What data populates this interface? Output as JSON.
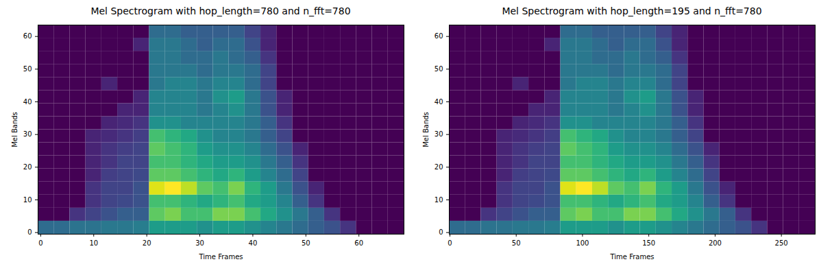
{
  "chart_data": [
    {
      "type": "heatmap",
      "title": "Mel Spectrogram with hop_length=780 and n_fft=780",
      "x_label": "Time Frames",
      "y_label": "Mel Bands",
      "color": "viridis",
      "xlim": [
        -0.5,
        68.5
      ],
      "ylim": [
        -0.5,
        63.5
      ],
      "xticks": [
        0,
        10,
        20,
        30,
        40,
        50,
        60
      ],
      "yticks": [
        0,
        10,
        20,
        30,
        40,
        50,
        60
      ],
      "x_edges": [
        -0.5,
        2.5,
        5.5,
        8.5,
        11.5,
        14.5,
        17.5,
        20.5,
        23.5,
        26.5,
        29.5,
        32.5,
        35.5,
        38.5,
        41.5,
        44.5,
        47.5,
        50.5,
        53.5,
        56.5,
        59.5,
        62.5,
        65.5,
        68.5
      ],
      "y_edges": [
        -0.5,
        3.5,
        7.5,
        11.5,
        15.5,
        19.5,
        23.5,
        27.5,
        31.5,
        35.5,
        39.5,
        43.5,
        47.5,
        51.5,
        55.5,
        59.5,
        63.5
      ],
      "cells": [
        [
          0.35,
          0.35,
          0.38,
          0.38,
          0.4,
          0.4,
          0.42,
          0.55,
          0.55,
          0.55,
          0.5,
          0.55,
          0.55,
          0.5,
          0.45,
          0.4,
          0.35,
          0.3,
          0.25,
          0.15,
          0,
          0,
          0
        ],
        [
          0,
          0,
          0.15,
          0.2,
          0.25,
          0.3,
          0.3,
          0.75,
          0.8,
          0.7,
          0.7,
          0.8,
          0.8,
          0.7,
          0.6,
          0.5,
          0.4,
          0.3,
          0.15,
          0,
          0,
          0,
          0
        ],
        [
          0,
          0,
          0,
          0.15,
          0.2,
          0.22,
          0.25,
          0.7,
          0.7,
          0.65,
          0.6,
          0.65,
          0.7,
          0.6,
          0.55,
          0.45,
          0.3,
          0.15,
          0,
          0,
          0,
          0,
          0
        ],
        [
          0,
          0,
          0,
          0.15,
          0.2,
          0.2,
          0.25,
          0.95,
          1,
          0.9,
          0.75,
          0.7,
          0.8,
          0.65,
          0.55,
          0.4,
          0.25,
          0.1,
          0,
          0,
          0,
          0,
          0
        ],
        [
          0,
          0,
          0,
          0.1,
          0.18,
          0.2,
          0.22,
          0.75,
          0.75,
          0.7,
          0.65,
          0.6,
          0.65,
          0.55,
          0.45,
          0.35,
          0.2,
          0,
          0,
          0,
          0,
          0,
          0
        ],
        [
          0,
          0,
          0,
          0.1,
          0.15,
          0.2,
          0.2,
          0.7,
          0.7,
          0.65,
          0.6,
          0.55,
          0.55,
          0.5,
          0.4,
          0.3,
          0.15,
          0,
          0,
          0,
          0,
          0,
          0
        ],
        [
          0,
          0,
          0,
          0.1,
          0.15,
          0.18,
          0.2,
          0.75,
          0.7,
          0.65,
          0.55,
          0.5,
          0.5,
          0.45,
          0.35,
          0.25,
          0.1,
          0,
          0,
          0,
          0,
          0,
          0
        ],
        [
          0,
          0,
          0,
          0.1,
          0.12,
          0.15,
          0.18,
          0.7,
          0.65,
          0.6,
          0.5,
          0.45,
          0.45,
          0.4,
          0.3,
          0.2,
          0,
          0,
          0,
          0,
          0,
          0,
          0
        ],
        [
          0,
          0,
          0,
          0,
          0.1,
          0.12,
          0.15,
          0.5,
          0.5,
          0.45,
          0.45,
          0.45,
          0.45,
          0.4,
          0.3,
          0.15,
          0,
          0,
          0,
          0,
          0,
          0,
          0
        ],
        [
          0,
          0,
          0,
          0,
          0,
          0.1,
          0.1,
          0.45,
          0.45,
          0.45,
          0.4,
          0.45,
          0.5,
          0.4,
          0.25,
          0.1,
          0,
          0,
          0,
          0,
          0,
          0,
          0
        ],
        [
          0,
          0,
          0,
          0,
          0,
          0,
          0.1,
          0.45,
          0.45,
          0.45,
          0.4,
          0.5,
          0.55,
          0.4,
          0.25,
          0.1,
          0,
          0,
          0,
          0,
          0,
          0,
          0
        ],
        [
          0,
          0,
          0,
          0,
          0.1,
          0,
          0,
          0.4,
          0.45,
          0.45,
          0.4,
          0.45,
          0.45,
          0.35,
          0.2,
          0,
          0,
          0,
          0,
          0,
          0,
          0,
          0
        ],
        [
          0,
          0,
          0,
          0,
          0,
          0,
          0,
          0.4,
          0.4,
          0.4,
          0.35,
          0.4,
          0.4,
          0.35,
          0.2,
          0,
          0,
          0,
          0,
          0,
          0,
          0,
          0
        ],
        [
          0,
          0,
          0,
          0,
          0,
          0,
          0,
          0.4,
          0.4,
          0.35,
          0.35,
          0.4,
          0.35,
          0.3,
          0.15,
          0,
          0,
          0,
          0,
          0,
          0,
          0,
          0
        ],
        [
          0,
          0,
          0,
          0,
          0,
          0,
          0.1,
          0.4,
          0.4,
          0.35,
          0.3,
          0.35,
          0.35,
          0.25,
          0.1,
          0,
          0,
          0,
          0,
          0,
          0,
          0,
          0
        ],
        [
          0,
          0,
          0,
          0,
          0,
          0,
          0,
          0.35,
          0.35,
          0.3,
          0.3,
          0.3,
          0.3,
          0.2,
          0.1,
          0,
          0,
          0,
          0,
          0,
          0,
          0,
          0
        ]
      ]
    },
    {
      "type": "heatmap",
      "title": "Mel Spectrogram with hop_length=195 and n_fft=780",
      "x_label": "Time Frames",
      "y_label": "Mel Bands",
      "color": "viridis",
      "xlim": [
        -0.5,
        275.5
      ],
      "ylim": [
        -0.5,
        63.5
      ],
      "xticks": [
        0,
        50,
        100,
        150,
        200,
        250
      ],
      "yticks": [
        0,
        10,
        20,
        30,
        40,
        50,
        60
      ],
      "x_edges": [
        -0.5,
        11.5,
        23.5,
        35.5,
        47.5,
        59.5,
        71.5,
        83.5,
        95.5,
        107.5,
        119.5,
        131.5,
        143.5,
        155.5,
        167.5,
        179.5,
        191.5,
        203.5,
        215.5,
        227.5,
        239.5,
        251.5,
        263.5,
        275.5
      ],
      "y_edges": [
        -0.5,
        3.5,
        7.5,
        11.5,
        15.5,
        19.5,
        23.5,
        27.5,
        31.5,
        35.5,
        39.5,
        43.5,
        47.5,
        51.5,
        55.5,
        59.5,
        63.5
      ],
      "cells": [
        [
          0.35,
          0.35,
          0.38,
          0.38,
          0.4,
          0.4,
          0.42,
          0.55,
          0.55,
          0.55,
          0.5,
          0.55,
          0.55,
          0.5,
          0.45,
          0.4,
          0.35,
          0.3,
          0.25,
          0.15,
          0,
          0,
          0
        ],
        [
          0,
          0,
          0.15,
          0.2,
          0.25,
          0.3,
          0.3,
          0.75,
          0.8,
          0.7,
          0.7,
          0.8,
          0.8,
          0.7,
          0.6,
          0.5,
          0.4,
          0.3,
          0.15,
          0,
          0,
          0,
          0
        ],
        [
          0,
          0,
          0,
          0.15,
          0.2,
          0.22,
          0.25,
          0.7,
          0.7,
          0.65,
          0.6,
          0.65,
          0.7,
          0.6,
          0.55,
          0.45,
          0.3,
          0.15,
          0,
          0,
          0,
          0,
          0
        ],
        [
          0,
          0,
          0,
          0.15,
          0.2,
          0.2,
          0.25,
          0.95,
          1,
          0.9,
          0.75,
          0.7,
          0.8,
          0.65,
          0.55,
          0.4,
          0.25,
          0.1,
          0,
          0,
          0,
          0,
          0
        ],
        [
          0,
          0,
          0,
          0.1,
          0.18,
          0.2,
          0.22,
          0.75,
          0.75,
          0.7,
          0.65,
          0.6,
          0.65,
          0.55,
          0.45,
          0.35,
          0.2,
          0,
          0,
          0,
          0,
          0,
          0
        ],
        [
          0,
          0,
          0,
          0.1,
          0.15,
          0.2,
          0.2,
          0.7,
          0.7,
          0.65,
          0.6,
          0.55,
          0.55,
          0.5,
          0.4,
          0.3,
          0.15,
          0,
          0,
          0,
          0,
          0,
          0
        ],
        [
          0,
          0,
          0,
          0.1,
          0.15,
          0.18,
          0.2,
          0.75,
          0.7,
          0.65,
          0.55,
          0.5,
          0.5,
          0.45,
          0.35,
          0.25,
          0.1,
          0,
          0,
          0,
          0,
          0,
          0
        ],
        [
          0,
          0,
          0,
          0.1,
          0.12,
          0.15,
          0.18,
          0.7,
          0.65,
          0.6,
          0.5,
          0.45,
          0.45,
          0.4,
          0.3,
          0.2,
          0,
          0,
          0,
          0,
          0,
          0,
          0
        ],
        [
          0,
          0,
          0,
          0,
          0.1,
          0.12,
          0.15,
          0.5,
          0.5,
          0.45,
          0.45,
          0.45,
          0.45,
          0.4,
          0.3,
          0.15,
          0,
          0,
          0,
          0,
          0,
          0,
          0
        ],
        [
          0,
          0,
          0,
          0,
          0,
          0.1,
          0.1,
          0.45,
          0.45,
          0.45,
          0.4,
          0.45,
          0.5,
          0.4,
          0.25,
          0.1,
          0,
          0,
          0,
          0,
          0,
          0,
          0
        ],
        [
          0,
          0,
          0,
          0,
          0,
          0,
          0.1,
          0.45,
          0.45,
          0.45,
          0.4,
          0.5,
          0.55,
          0.4,
          0.25,
          0.1,
          0,
          0,
          0,
          0,
          0,
          0,
          0
        ],
        [
          0,
          0,
          0,
          0,
          0.1,
          0,
          0,
          0.4,
          0.45,
          0.45,
          0.4,
          0.45,
          0.45,
          0.35,
          0.2,
          0,
          0,
          0,
          0,
          0,
          0,
          0,
          0
        ],
        [
          0,
          0,
          0,
          0,
          0,
          0,
          0,
          0.4,
          0.4,
          0.4,
          0.35,
          0.4,
          0.4,
          0.35,
          0.2,
          0,
          0,
          0,
          0,
          0,
          0,
          0,
          0
        ],
        [
          0,
          0,
          0,
          0,
          0,
          0,
          0,
          0.4,
          0.4,
          0.35,
          0.35,
          0.4,
          0.35,
          0.3,
          0.15,
          0,
          0,
          0,
          0,
          0,
          0,
          0,
          0
        ],
        [
          0,
          0,
          0,
          0,
          0,
          0,
          0.1,
          0.4,
          0.4,
          0.35,
          0.3,
          0.35,
          0.35,
          0.25,
          0.1,
          0,
          0,
          0,
          0,
          0,
          0,
          0,
          0
        ],
        [
          0,
          0,
          0,
          0,
          0,
          0,
          0,
          0.35,
          0.35,
          0.3,
          0.3,
          0.3,
          0.3,
          0.2,
          0.1,
          0,
          0,
          0,
          0,
          0,
          0,
          0,
          0
        ]
      ]
    }
  ]
}
